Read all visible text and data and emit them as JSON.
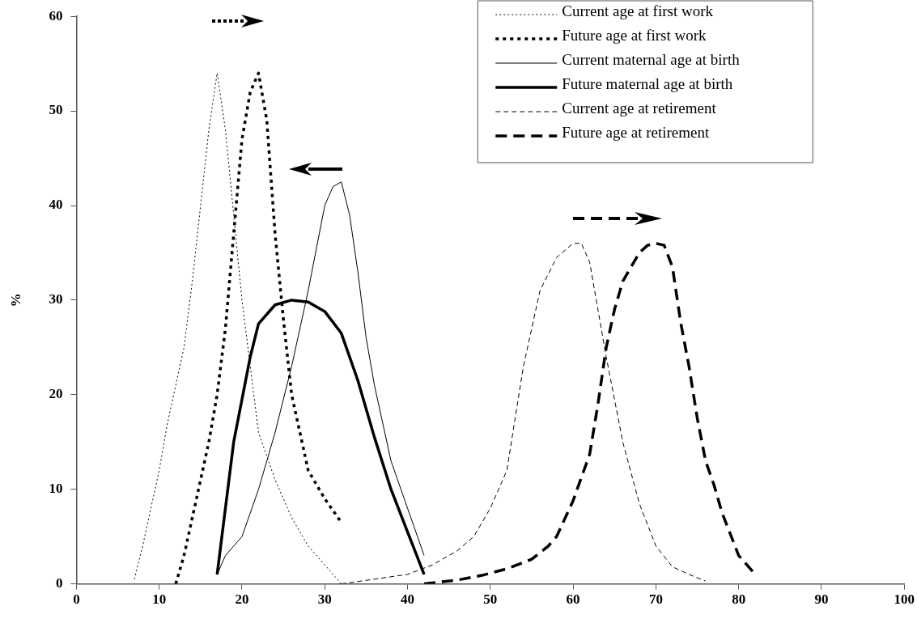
{
  "chart_data": {
    "type": "line",
    "ylabel": "%",
    "xlim": [
      0,
      100
    ],
    "xticks": [
      0,
      10,
      20,
      30,
      40,
      50,
      60,
      70,
      80,
      90,
      100
    ],
    "ylim": [
      0,
      60
    ],
    "yticks": [
      0,
      10,
      20,
      30,
      40,
      50,
      60
    ],
    "grid": false,
    "legend": "top right",
    "marker": "none",
    "series": [
      {
        "name": "Current age at first work",
        "color": "#000000",
        "line_style": "dotted",
        "x": [
          7,
          8,
          9,
          10,
          11,
          12,
          13,
          14,
          15,
          16,
          17,
          18,
          19,
          20,
          21,
          22,
          24,
          26,
          28,
          30,
          32
        ],
        "values": [
          0.5,
          4,
          8,
          12,
          17,
          21,
          25,
          32,
          40,
          48,
          54,
          48,
          39,
          30,
          23,
          16,
          11,
          7,
          4,
          2,
          0
        ]
      },
      {
        "name": "Future age at first work",
        "color": "#000000",
        "line_style": "dotted",
        "x": [
          12,
          13,
          14,
          15,
          16,
          17,
          18,
          19,
          20,
          21,
          22,
          23,
          24,
          25,
          26,
          27,
          28,
          30,
          32
        ],
        "values": [
          0,
          3,
          7,
          11,
          15,
          20,
          27,
          37,
          47,
          52,
          54,
          49,
          37,
          28,
          20,
          16,
          12,
          9,
          6.5
        ]
      },
      {
        "name": "Current maternal age at birth",
        "color": "#000000",
        "line_style": "solid",
        "x": [
          17,
          18,
          20,
          22,
          24,
          26,
          28,
          30,
          31,
          32,
          33,
          34,
          35,
          36,
          38,
          40,
          42
        ],
        "values": [
          1,
          3,
          5,
          10,
          16,
          23,
          31,
          40,
          42,
          42.5,
          39,
          33,
          26,
          21,
          13,
          8,
          3
        ]
      },
      {
        "name": "Future maternal age at birth",
        "color": "#000000",
        "line_style": "solid",
        "x": [
          17,
          19,
          21,
          22,
          24,
          26,
          28,
          30,
          32,
          34,
          36,
          38,
          40,
          42
        ],
        "values": [
          1,
          15,
          24,
          27.5,
          29.5,
          30,
          29.8,
          28.8,
          26.5,
          21.5,
          15.5,
          10,
          5.5,
          1
        ]
      },
      {
        "name": "Current age at retirement",
        "color": "#000000",
        "line_style": "dashed",
        "x": [
          32,
          36,
          40,
          43,
          46,
          48,
          50,
          52,
          54,
          56,
          58,
          60,
          61,
          62,
          64,
          66,
          68,
          70,
          72,
          74,
          76
        ],
        "values": [
          0,
          0.5,
          1,
          2,
          3.5,
          5,
          8,
          12,
          23,
          31,
          34.5,
          36,
          36,
          34,
          24,
          15,
          8.5,
          4,
          1.8,
          1,
          0.3
        ]
      },
      {
        "name": "Future age at retirement",
        "color": "#000000",
        "line_style": "dashed",
        "x": [
          42,
          46,
          49,
          52,
          55,
          57,
          58,
          60,
          62,
          63,
          64,
          65,
          66,
          67,
          68,
          69,
          70,
          71,
          72,
          73,
          74,
          75,
          76,
          77,
          78,
          80,
          82
        ],
        "values": [
          0,
          0.4,
          0.9,
          1.6,
          2.6,
          4,
          5,
          8.8,
          13.7,
          19,
          25,
          29,
          32,
          33.5,
          35,
          35.8,
          36,
          35.8,
          33.5,
          27.6,
          23,
          17.5,
          13,
          10.5,
          7.5,
          3,
          1
        ]
      }
    ]
  }
}
